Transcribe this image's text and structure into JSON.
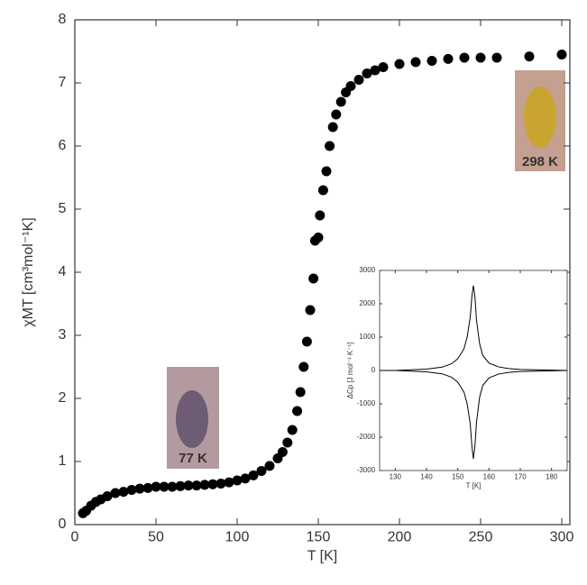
{
  "chart_data": [
    {
      "type": "scatter",
      "xlabel": "T [K]",
      "ylabel": "χMT [cm³mol⁻¹K]",
      "x": [
        5,
        7,
        10,
        13,
        16,
        20,
        25,
        30,
        35,
        40,
        45,
        50,
        55,
        60,
        65,
        70,
        75,
        80,
        85,
        90,
        95,
        100,
        105,
        110,
        115,
        120,
        125,
        128,
        131,
        134,
        137,
        139,
        141,
        143,
        145,
        147,
        148,
        150,
        151,
        153,
        155,
        157,
        159,
        161,
        164,
        167,
        170,
        175,
        180,
        185,
        190,
        200,
        210,
        220,
        230,
        240,
        250,
        260,
        280,
        300
      ],
      "values": [
        0.18,
        0.22,
        0.3,
        0.36,
        0.4,
        0.45,
        0.5,
        0.52,
        0.55,
        0.57,
        0.58,
        0.6,
        0.6,
        0.6,
        0.61,
        0.62,
        0.62,
        0.63,
        0.64,
        0.65,
        0.67,
        0.7,
        0.73,
        0.78,
        0.85,
        0.93,
        1.05,
        1.15,
        1.3,
        1.5,
        1.8,
        2.1,
        2.5,
        2.9,
        3.4,
        3.9,
        4.5,
        4.55,
        4.9,
        5.3,
        5.6,
        6.0,
        6.3,
        6.5,
        6.7,
        6.85,
        6.95,
        7.05,
        7.15,
        7.2,
        7.25,
        7.3,
        7.33,
        7.35,
        7.38,
        7.4,
        7.4,
        7.4,
        7.42,
        7.45
      ],
      "color": "#000000",
      "xlim": [
        0,
        305
      ],
      "xticks": [
        0,
        50,
        100,
        150,
        200,
        250,
        300
      ],
      "ylim": [
        0,
        8
      ],
      "yticks": [
        0,
        1,
        2,
        3,
        4,
        5,
        6,
        7,
        8
      ],
      "annotations": [
        "77 K",
        "298 K"
      ]
    },
    {
      "type": "line",
      "xlabel": "T [K]",
      "ylabel": "ΔCp [J mol⁻¹ K⁻¹]",
      "x": [
        125,
        130,
        135,
        140,
        145,
        148,
        150,
        152,
        153,
        154,
        154.5,
        155,
        155.5,
        156,
        157,
        158,
        160,
        163,
        166,
        170,
        175,
        180,
        185
      ],
      "series": [
        {
          "color": "#000000",
          "values": [
            0,
            0,
            20,
            40,
            100,
            200,
            350,
            650,
            1000,
            1600,
            2200,
            2550,
            2200,
            1500,
            800,
            450,
            220,
            110,
            60,
            30,
            20,
            10,
            0
          ]
        },
        {
          "color": "#000000",
          "values": [
            0,
            0,
            -20,
            -40,
            -100,
            -200,
            -350,
            -650,
            -1000,
            -1600,
            -2250,
            -2650,
            -2250,
            -1550,
            -800,
            -450,
            -220,
            -110,
            -60,
            -30,
            -20,
            -10,
            0
          ]
        }
      ],
      "xlim": [
        125,
        185
      ],
      "xticks": [
        130,
        140,
        150,
        160,
        170,
        180
      ],
      "ylim": [
        -3000,
        3000
      ],
      "yticks": [
        -3000,
        -2000,
        -1000,
        0,
        1000,
        2000,
        3000
      ]
    }
  ]
}
